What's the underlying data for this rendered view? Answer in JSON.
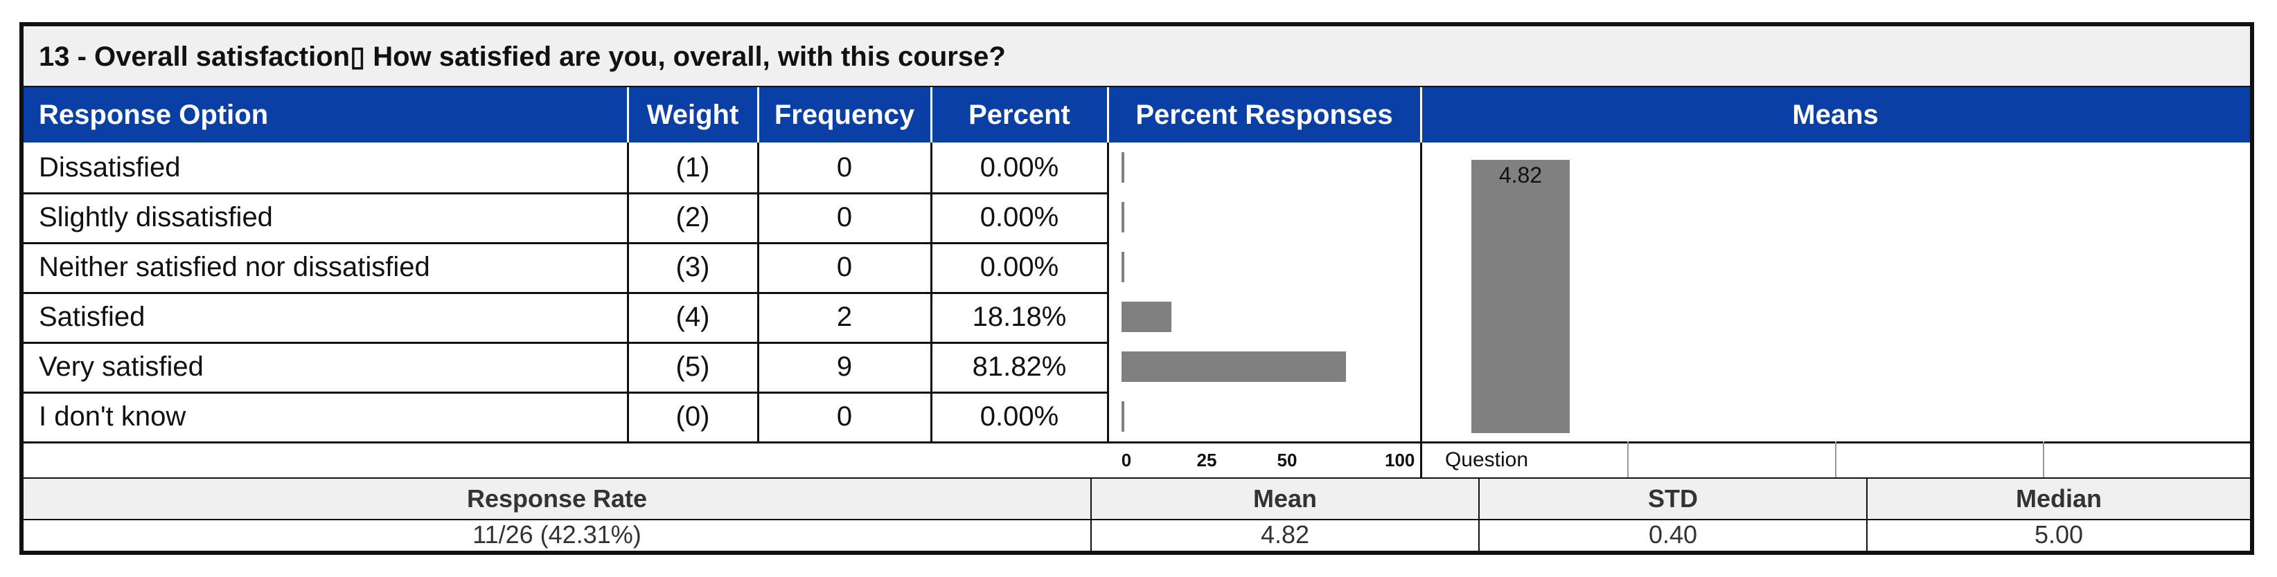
{
  "title": "13 - Overall satisfaction▯ How satisfied are you, overall, with this course?",
  "headers": {
    "response_option": "Response Option",
    "weight": "Weight",
    "frequency": "Frequency",
    "percent": "Percent",
    "percent_responses": "Percent Responses",
    "means": "Means"
  },
  "rows": [
    {
      "option": "Dissatisfied",
      "weight": "(1)",
      "frequency": "0",
      "percent": "0.00%"
    },
    {
      "option": "Slightly dissatisfied",
      "weight": "(2)",
      "frequency": "0",
      "percent": "0.00%"
    },
    {
      "option": "Neither satisfied nor dissatisfied",
      "weight": "(3)",
      "frequency": "0",
      "percent": "0.00%"
    },
    {
      "option": "Satisfied",
      "weight": "(4)",
      "frequency": "2",
      "percent": "18.18%"
    },
    {
      "option": "Very satisfied",
      "weight": "(5)",
      "frequency": "9",
      "percent": "81.82%"
    },
    {
      "option": "I don't know",
      "weight": "(0)",
      "frequency": "0",
      "percent": "0.00%"
    }
  ],
  "axis_ticks": [
    "0",
    "25",
    "50",
    "100"
  ],
  "means_chart": {
    "label": "4.82",
    "x_label": "Question"
  },
  "stats": {
    "headers": {
      "response_rate": "Response Rate",
      "mean": "Mean",
      "std": "STD",
      "median": "Median"
    },
    "values": {
      "response_rate": "11/26 (42.31%)",
      "mean": "4.82",
      "std": "0.40",
      "median": "5.00"
    }
  },
  "colors": {
    "header_bg": "#0a3fa6",
    "bar": "#808080",
    "title_bg": "#f0f0f0"
  },
  "chart_data": [
    {
      "type": "bar",
      "orientation": "horizontal",
      "title": "Percent Responses",
      "categories": [
        "Dissatisfied",
        "Slightly dissatisfied",
        "Neither satisfied nor dissatisfied",
        "Satisfied",
        "Very satisfied",
        "I don't know"
      ],
      "values": [
        0,
        0,
        0,
        18.18,
        81.82,
        0
      ],
      "xlim": [
        0,
        100
      ],
      "xticks": [
        0,
        25,
        50,
        100
      ]
    },
    {
      "type": "bar",
      "title": "Means",
      "categories": [
        "Question"
      ],
      "values": [
        4.82
      ],
      "ylim": [
        0,
        5
      ]
    }
  ]
}
